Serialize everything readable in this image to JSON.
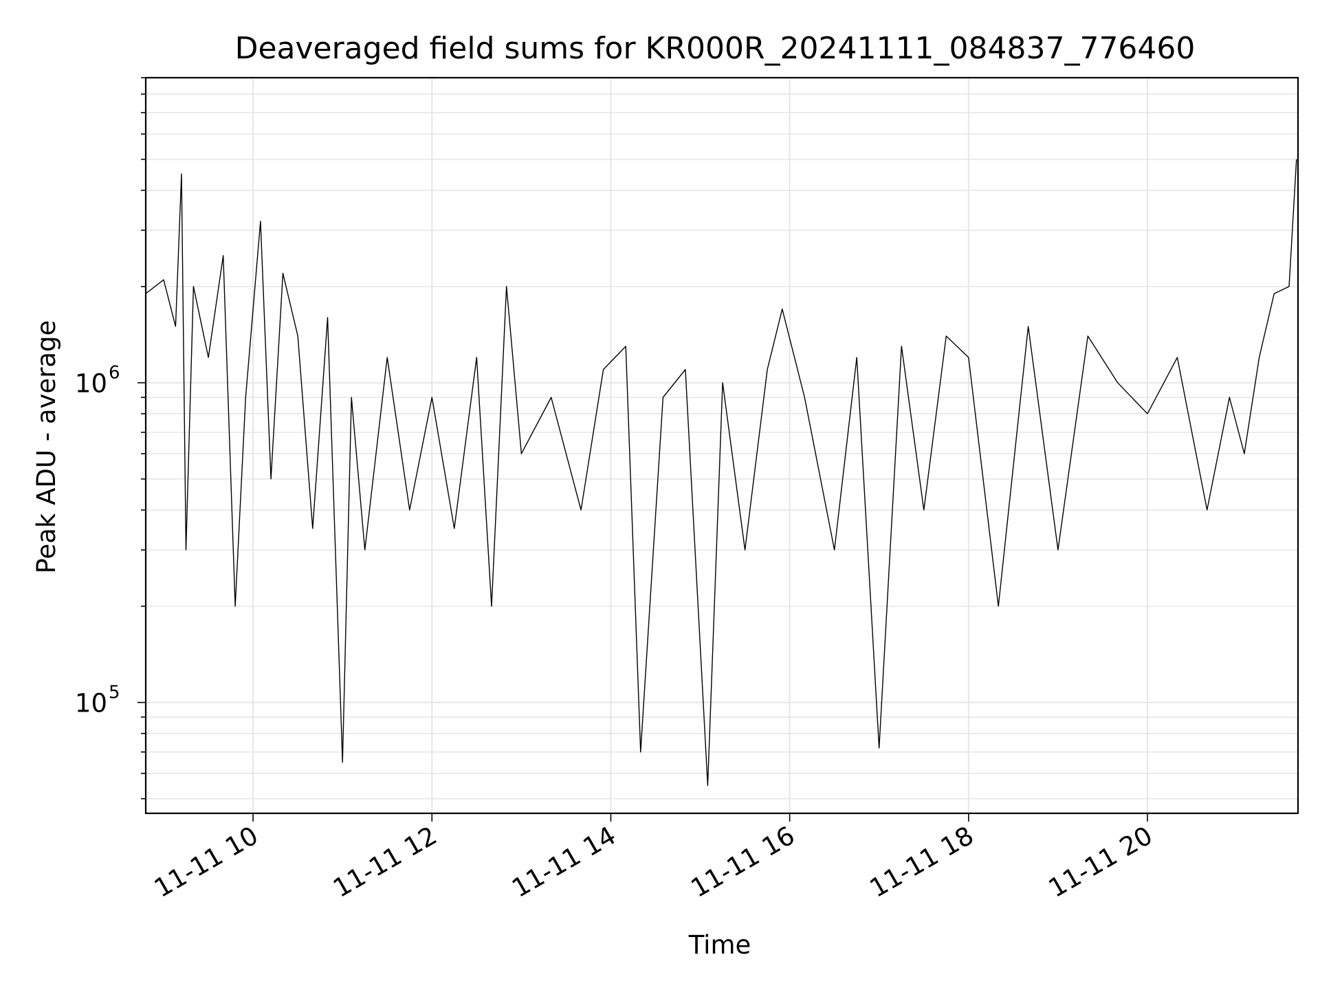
{
  "chart_data": {
    "type": "line",
    "title": "Deaveraged field sums for KR000R_20241111_084837_776460",
    "xlabel": "Time",
    "ylabel": "Peak ADU - average",
    "yscale": "log",
    "ylim": [
      45000,
      9000000
    ],
    "xlim": [
      "2024-11-11 08:48",
      "2024-11-11 21:41"
    ],
    "grid": true,
    "line_color": "#000000",
    "x_ticks": [
      {
        "value": "2024-11-11 10:00",
        "label": "11-11 10"
      },
      {
        "value": "2024-11-11 12:00",
        "label": "11-11 12"
      },
      {
        "value": "2024-11-11 14:00",
        "label": "11-11 14"
      },
      {
        "value": "2024-11-11 16:00",
        "label": "11-11 16"
      },
      {
        "value": "2024-11-11 18:00",
        "label": "11-11 18"
      },
      {
        "value": "2024-11-11 20:00",
        "label": "11-11 20"
      }
    ],
    "y_ticks": [
      {
        "value": 100000,
        "base": "10",
        "exp": "5"
      },
      {
        "value": 1000000,
        "base": "10",
        "exp": "6"
      }
    ],
    "series": [
      {
        "x": [
          "2024-11-11 08:48",
          "2024-11-11 09:00",
          "2024-11-11 09:08",
          "2024-11-11 09:12",
          "2024-11-11 09:15",
          "2024-11-11 09:20",
          "2024-11-11 09:30",
          "2024-11-11 09:40",
          "2024-11-11 09:48",
          "2024-11-11 09:55",
          "2024-11-11 10:05",
          "2024-11-11 10:12",
          "2024-11-11 10:20",
          "2024-11-11 10:30",
          "2024-11-11 10:40",
          "2024-11-11 10:50",
          "2024-11-11 11:00",
          "2024-11-11 11:06",
          "2024-11-11 11:15",
          "2024-11-11 11:30",
          "2024-11-11 11:45",
          "2024-11-11 12:00",
          "2024-11-11 12:15",
          "2024-11-11 12:30",
          "2024-11-11 12:40",
          "2024-11-11 12:50",
          "2024-11-11 13:00",
          "2024-11-11 13:20",
          "2024-11-11 13:40",
          "2024-11-11 13:55",
          "2024-11-11 14:10",
          "2024-11-11 14:20",
          "2024-11-11 14:35",
          "2024-11-11 14:50",
          "2024-11-11 15:05",
          "2024-11-11 15:15",
          "2024-11-11 15:30",
          "2024-11-11 15:45",
          "2024-11-11 15:55",
          "2024-11-11 16:10",
          "2024-11-11 16:30",
          "2024-11-11 16:45",
          "2024-11-11 17:00",
          "2024-11-11 17:15",
          "2024-11-11 17:30",
          "2024-11-11 17:45",
          "2024-11-11 18:00",
          "2024-11-11 18:20",
          "2024-11-11 18:40",
          "2024-11-11 19:00",
          "2024-11-11 19:20",
          "2024-11-11 19:40",
          "2024-11-11 20:00",
          "2024-11-11 20:20",
          "2024-11-11 20:40",
          "2024-11-11 20:55",
          "2024-11-11 21:05",
          "2024-11-11 21:15",
          "2024-11-11 21:25",
          "2024-11-11 21:35",
          "2024-11-11 21:40"
        ],
        "y": [
          1900000,
          2100000,
          1500000,
          4500000,
          300000,
          2000000,
          1200000,
          2500000,
          200000,
          900000,
          3200000,
          500000,
          2200000,
          1400000,
          350000,
          1600000,
          65000,
          900000,
          300000,
          1200000,
          400000,
          900000,
          350000,
          1200000,
          200000,
          2000000,
          600000,
          900000,
          400000,
          1100000,
          1300000,
          70000,
          900000,
          1100000,
          55000,
          1000000,
          300000,
          1100000,
          1700000,
          900000,
          300000,
          1200000,
          72000,
          1300000,
          400000,
          1400000,
          1200000,
          200000,
          1500000,
          300000,
          1400000,
          1000000,
          800000,
          1200000,
          400000,
          900000,
          600000,
          1200000,
          1900000,
          2000000,
          5000000
        ]
      }
    ]
  }
}
